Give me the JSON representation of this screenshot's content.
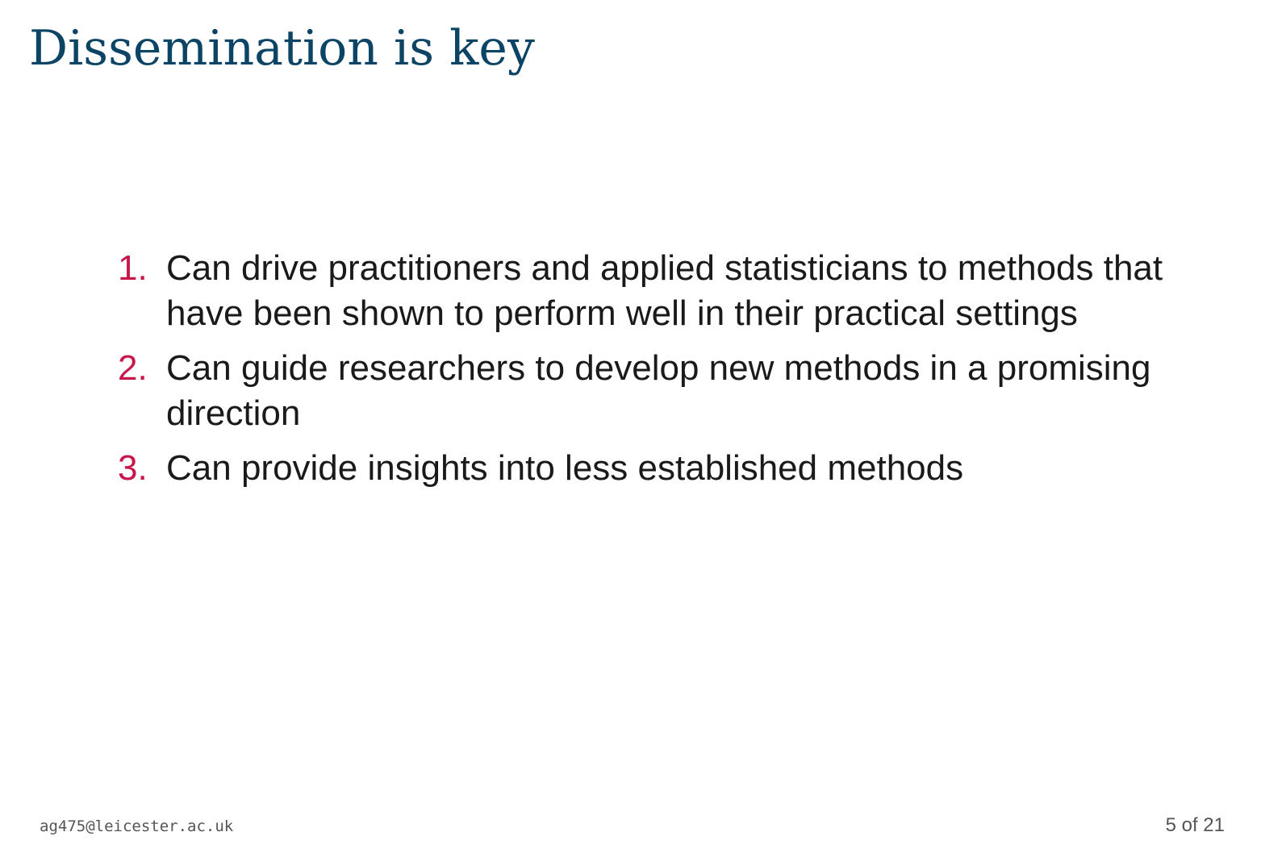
{
  "slide": {
    "title": "Dissemination is key",
    "items": [
      {
        "number": "1.",
        "text": "Can drive practitioners and applied statisticians to methods that have been shown to perform well in their practical settings"
      },
      {
        "number": "2.",
        "text": "Can guide researchers to develop new methods in a promising direction"
      },
      {
        "number": "3.",
        "text": "Can provide insights into less established methods"
      }
    ]
  },
  "footer": {
    "email": "ag475@leicester.ac.uk",
    "page_current": "5",
    "page_separator": "of",
    "page_total": "21"
  },
  "colors": {
    "title": "#0c4466",
    "accent": "#c8174a",
    "text": "#1a1a1a",
    "footer": "#555555"
  }
}
